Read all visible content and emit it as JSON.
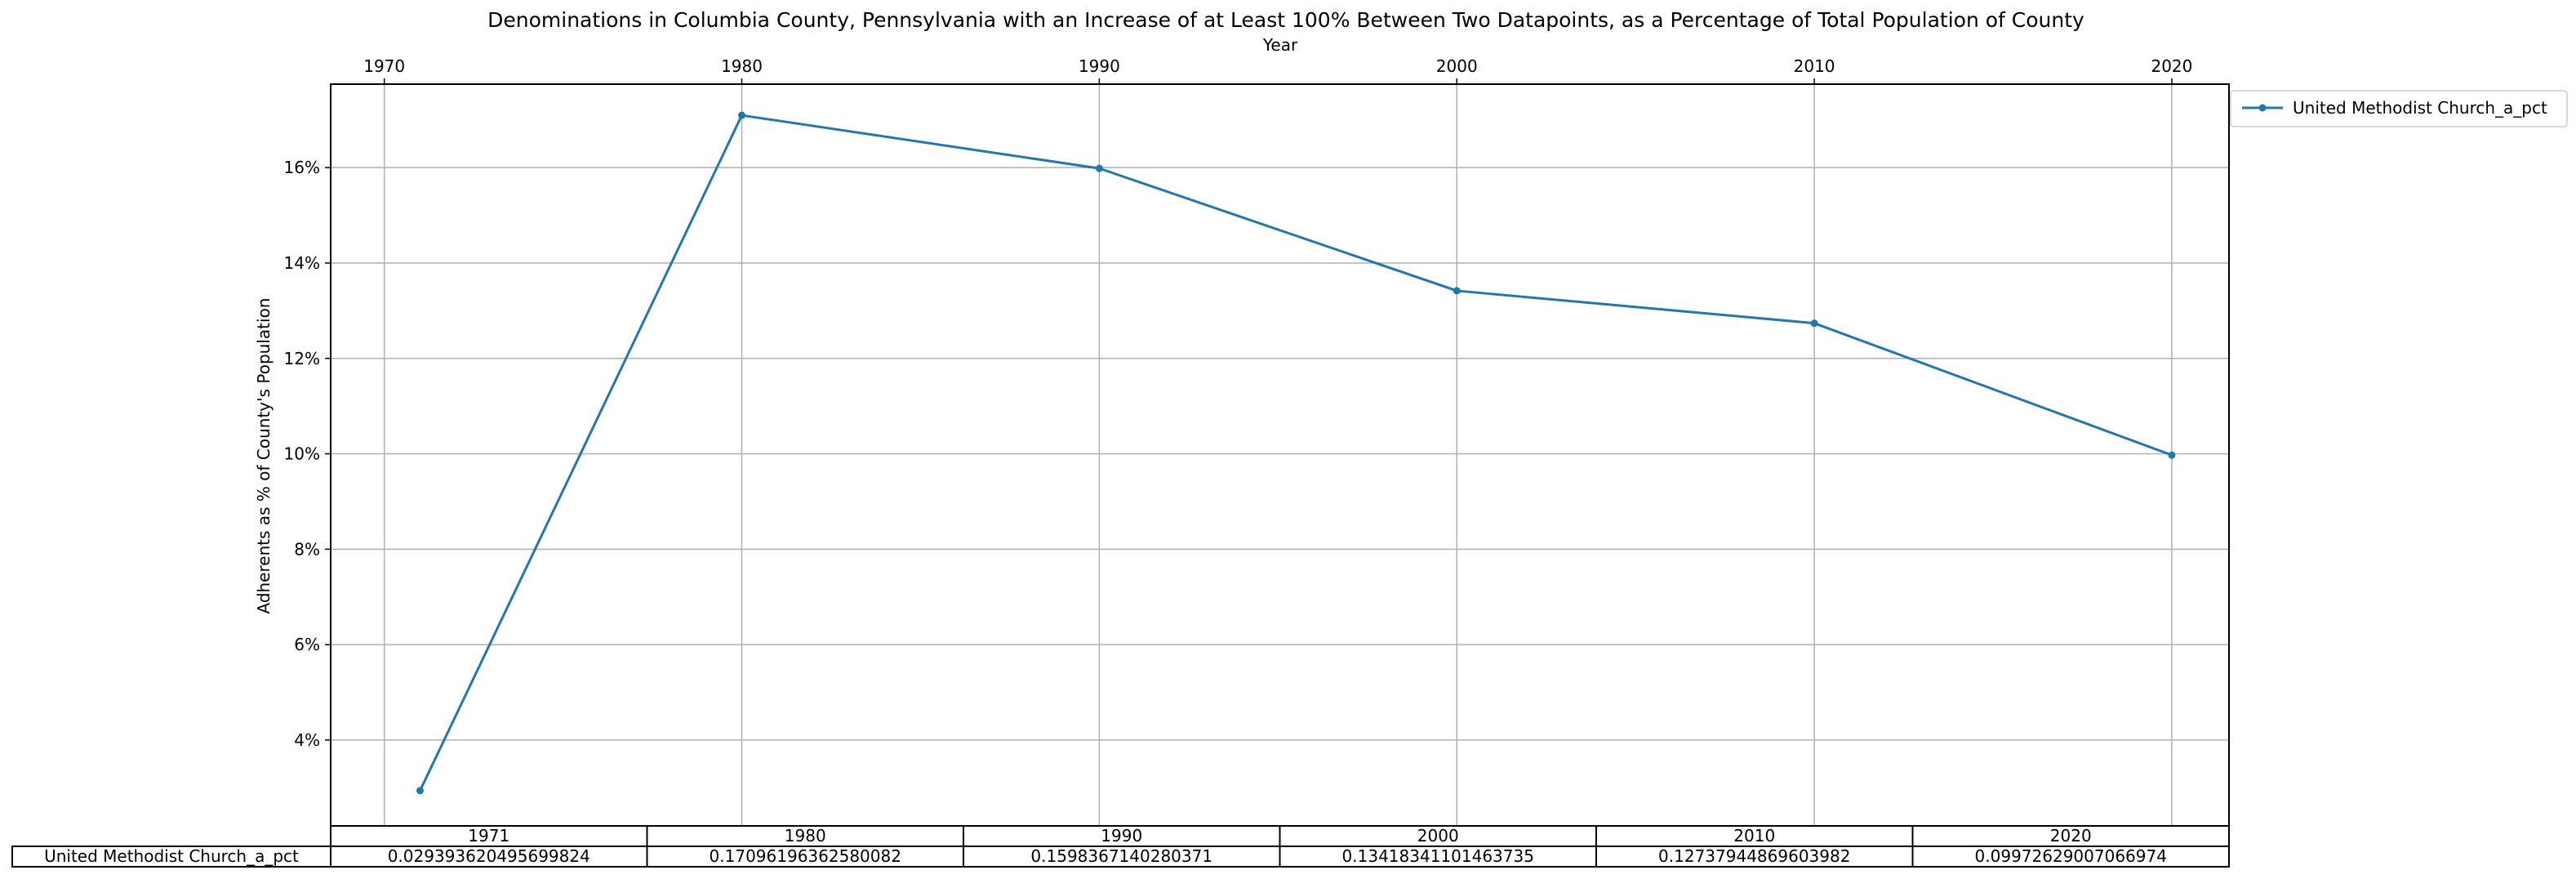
{
  "chart_data": {
    "type": "line",
    "title": "Denominations in Columbia County, Pennsylvania with an Increase of at Least 100% Between Two Datapoints, as a Percentage of Total Population of County",
    "xlabel": "Year",
    "ylabel": "Adherents as % of County's Population",
    "x_ticks": [
      "1970",
      "1980",
      "1990",
      "2000",
      "2010",
      "2020"
    ],
    "y_ticks": [
      "4%",
      "6%",
      "8%",
      "10%",
      "12%",
      "14%",
      "16%"
    ],
    "y_tick_values": [
      0.04,
      0.06,
      0.08,
      0.1,
      0.12,
      0.14,
      0.16
    ],
    "xlim": [
      1968.5,
      2021.6
    ],
    "ylim": [
      0.022,
      0.1775
    ],
    "grid": true,
    "legend_position": "outside top-right",
    "x": [
      1971,
      1980,
      1990,
      2000,
      2010,
      2020
    ],
    "series": [
      {
        "name": "United Methodist Church_a_pct",
        "color": "#1f77b4",
        "values": [
          0.029393620495699824,
          0.17096196362580082,
          0.1598367140280371,
          0.13418341101463735,
          0.12737944869603982,
          0.09972629007066974
        ]
      }
    ],
    "table": {
      "col_labels": [
        "1971",
        "1980",
        "1990",
        "2000",
        "2010",
        "2020"
      ],
      "row_label": "United Methodist Church_a_pct",
      "cells": [
        "0.029393620495699824",
        "0.17096196362580082",
        "0.1598367140280371",
        "0.13418341101463735",
        "0.12737944869603982",
        "0.09972629007066974"
      ]
    }
  }
}
